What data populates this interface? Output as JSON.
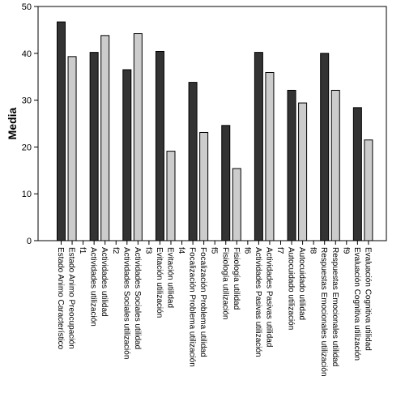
{
  "chart_data": {
    "type": "bar",
    "title": "",
    "xlabel": "",
    "ylabel": "Media",
    "ylim": [
      0,
      50
    ],
    "yticks": [
      0,
      10,
      20,
      30,
      40,
      50
    ],
    "grid": false,
    "categories": [
      "Estado Animo Característico",
      "Estado Animo Preocupación",
      "f1",
      "Actividades utilización",
      "Actividades utilidad",
      "f2",
      "Actividades Sociales utilización",
      "Actividades Sociales utilidad",
      "f3",
      "Evitación utilización",
      "Evitación utilidad",
      "f4",
      "Focalización Problema utilización",
      "Focalización Problema utilidad",
      "f5",
      "Fisiología utilización",
      "Fisiología utilidad",
      "f6",
      "Actividades Pasivas utilización",
      "Actividades Pasivas utilidad",
      "f7",
      "Autocuidado utilización",
      "Autocuidado utilidad",
      "f8",
      "Respuestas Emocionales utilización",
      "Respuestas Emocionales utilidad",
      "f9",
      "Evaluación Cognitiva utilización",
      "Evaluación Cognitiva utilidad"
    ],
    "values": [
      46.7,
      39.3,
      null,
      40.2,
      43.8,
      null,
      36.5,
      44.2,
      null,
      40.4,
      19.1,
      null,
      33.8,
      23.1,
      null,
      24.6,
      15.4,
      null,
      40.2,
      35.9,
      null,
      32.1,
      29.4,
      null,
      40.0,
      32.1,
      null,
      28.4,
      21.5
    ],
    "colors": {
      "dark": "#333333",
      "light": "#cccccc",
      "outline": "#000000"
    }
  }
}
